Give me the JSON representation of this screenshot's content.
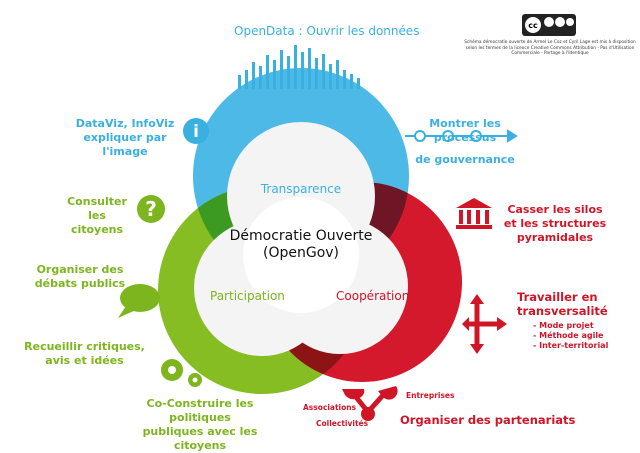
{
  "center": {
    "line1": "Démocratie Ouverte",
    "line2": "(OpenGov)"
  },
  "circles": {
    "transparence": "Transparence",
    "participation": "Participation",
    "cooperation": "Coopération"
  },
  "colors": {
    "blue": "#3ab0e0",
    "green": "#7db51e",
    "red": "#d01527"
  },
  "labels": {
    "opendata": "OpenData : Ouvrir les données",
    "dataviz1": "DataViz, InfoViz",
    "dataviz2": "expliquer par l'image",
    "processus1": "Montrer les processus",
    "processus2": "de gouvernance",
    "consulter1": "Consulter",
    "consulter2": "les citoyens",
    "organiser1": "Organiser des",
    "organiser2": "débats publics",
    "recueillir1": "Recueillir critiques,",
    "recueillir2": "avis et idées",
    "coconstruire1": "Co-Construire les politiques",
    "coconstruire2": "publiques avec les citoyens",
    "silos1": "Casser les silos",
    "silos2": "et les structures",
    "silos3": "pyramidales",
    "transv1": "Travailler en",
    "transv2": "transversalité",
    "sub1": "- Mode projet",
    "sub2": "- Méthode agile",
    "sub3": "- Inter-territorial",
    "entreprises": "Entreprises",
    "associations": "Associations",
    "collectivites": "Collectivités",
    "partenariats": "Organiser des partenariats"
  },
  "license": {
    "text": "Schéma démocratie ouverte de Armel Le Coz et Cyril Lage est mis à disposition selon les termes de la licence Creative Commons Attribution - Pas d'Utilisation Commerciale - Partage à l'Identique",
    "badge": "cc by nc sa"
  },
  "icons": [
    "info-icon",
    "question-icon",
    "speech-bubble-icon",
    "gears-icon",
    "bar-chart-icon",
    "process-arrow-icon",
    "institution-icon",
    "cross-arrows-icon",
    "network-icon"
  ]
}
